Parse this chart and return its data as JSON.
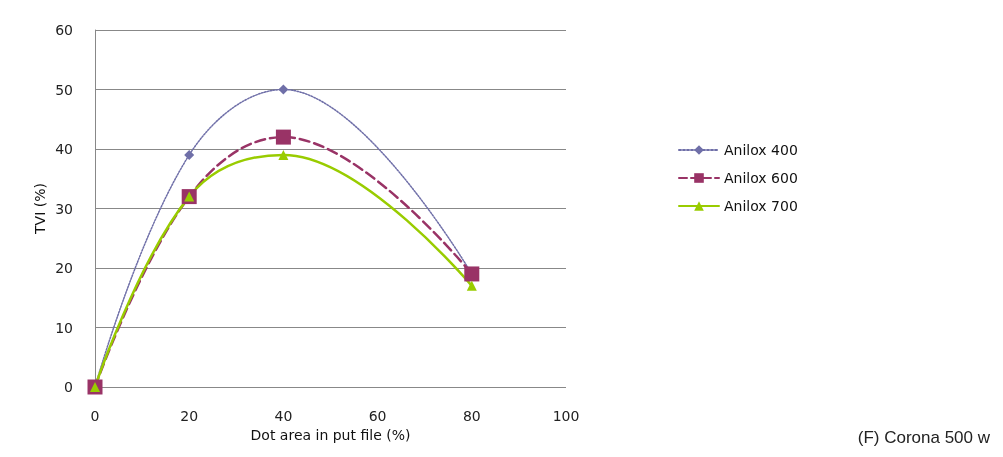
{
  "chart_data": {
    "type": "line",
    "xlabel": "Dot area in put file (%)",
    "ylabel": "TVI (%)",
    "x": [
      0,
      20,
      40,
      80
    ],
    "series": [
      {
        "name": "Anilox 400",
        "color": "#6f6fa8",
        "values": [
          0,
          39,
          50,
          19
        ],
        "marker": "diamond",
        "line_style": "dotted"
      },
      {
        "name": "Anilox 600",
        "color": "#993366",
        "values": [
          0,
          32,
          42,
          19
        ],
        "marker": "square",
        "line_style": "dashed"
      },
      {
        "name": "Anilox 700",
        "color": "#99cc00",
        "values": [
          0,
          32,
          39,
          17
        ],
        "marker": "triangle",
        "line_style": "solid"
      }
    ],
    "xlim": [
      0,
      100
    ],
    "xticks": [
      0,
      20,
      40,
      60,
      80,
      100
    ],
    "ylim": [
      0,
      60
    ],
    "yticks": [
      0,
      10,
      20,
      30,
      40,
      50,
      60
    ],
    "grid": "y",
    "legend": "right",
    "annotations": [
      "(F) Corona 500 w"
    ]
  }
}
